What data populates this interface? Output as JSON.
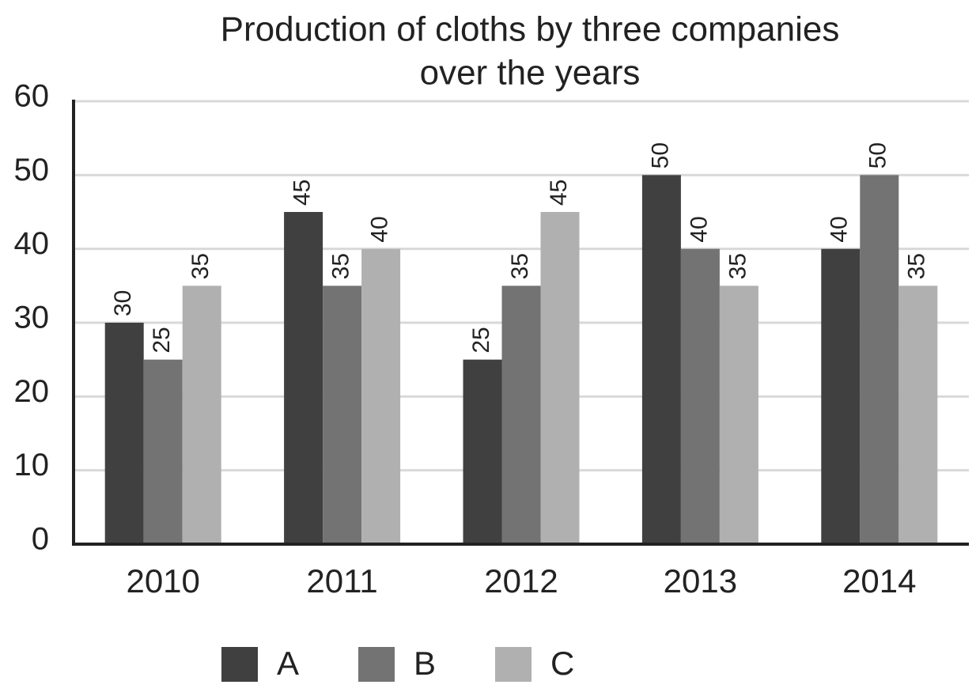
{
  "chart_data": {
    "type": "bar",
    "title": [
      "Production of cloths by three companies",
      "over the years"
    ],
    "categories": [
      "2010",
      "2011",
      "2012",
      "2013",
      "2014"
    ],
    "series": [
      {
        "name": "A",
        "color": "#404040",
        "values": [
          30,
          45,
          25,
          50,
          40
        ]
      },
      {
        "name": "B",
        "color": "#737373",
        "values": [
          25,
          35,
          35,
          40,
          50
        ]
      },
      {
        "name": "C",
        "color": "#b0b0b0",
        "values": [
          35,
          40,
          45,
          35,
          35
        ]
      }
    ],
    "ylim": [
      0,
      60
    ],
    "yticks": [
      0,
      10,
      20,
      30,
      40,
      50,
      60
    ],
    "grid": true,
    "legend": "bottom"
  }
}
